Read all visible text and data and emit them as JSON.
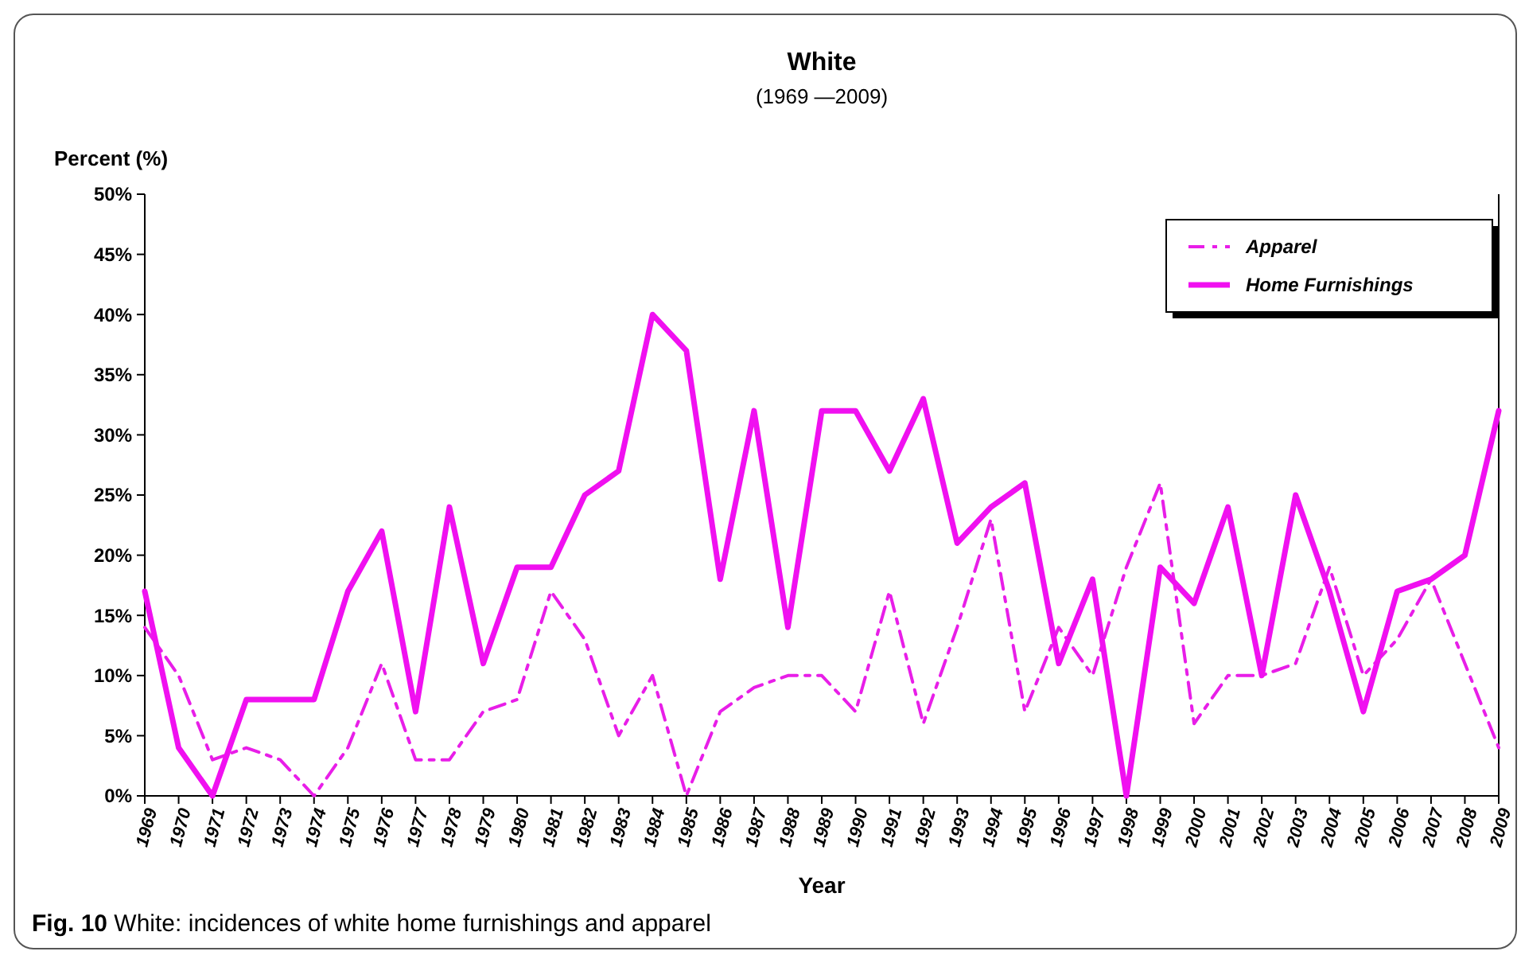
{
  "chart_data": {
    "type": "line",
    "title": "White",
    "subtitle": "(1969 —2009)",
    "xlabel": "Year",
    "ylabel": "Percent (%)",
    "categories": [
      "1969",
      "1970",
      "1971",
      "1972",
      "1973",
      "1974",
      "1975",
      "1976",
      "1977",
      "1978",
      "1979",
      "1980",
      "1981",
      "1982",
      "1983",
      "1984",
      "1985",
      "1986",
      "1987",
      "1988",
      "1989",
      "1990",
      "1991",
      "1992",
      "1993",
      "1994",
      "1995",
      "1996",
      "1997",
      "1998",
      "1999",
      "2000",
      "2001",
      "2002",
      "2003",
      "2004",
      "2005",
      "2006",
      "2007",
      "2008",
      "2009"
    ],
    "series": [
      {
        "name": "Apparel",
        "color": "#e81ee8",
        "line_style": "dashed",
        "values": [
          14,
          10,
          3,
          4,
          3,
          0,
          4,
          11,
          3,
          3,
          7,
          8,
          17,
          13,
          5,
          10,
          0,
          7,
          9,
          10,
          10,
          7,
          17,
          6,
          14,
          23,
          7,
          14,
          10,
          19,
          26,
          6,
          10,
          10,
          11,
          19,
          10,
          13,
          18,
          11,
          4
        ]
      },
      {
        "name": "Home Furnishings",
        "color": "#f010f0",
        "line_style": "solid",
        "values": [
          17,
          4,
          0,
          8,
          8,
          8,
          17,
          22,
          7,
          24,
          11,
          19,
          19,
          25,
          27,
          40,
          37,
          18,
          32,
          14,
          32,
          32,
          27,
          33,
          21,
          24,
          26,
          11,
          18,
          0,
          19,
          16,
          24,
          10,
          25,
          17,
          7,
          17,
          18,
          20,
          32
        ]
      }
    ],
    "ylim": [
      0,
      50
    ],
    "yticks": [
      {
        "value": 0,
        "label": "0%"
      },
      {
        "value": 5,
        "label": "5%"
      },
      {
        "value": 10,
        "label": "10%"
      },
      {
        "value": 15,
        "label": "15%"
      },
      {
        "value": 20,
        "label": "20%"
      },
      {
        "value": 25,
        "label": "25%"
      },
      {
        "value": 30,
        "label": "30%"
      },
      {
        "value": 35,
        "label": "35%"
      },
      {
        "value": 40,
        "label": "40%"
      },
      {
        "value": 45,
        "label": "45%"
      },
      {
        "value": 50,
        "label": "50%"
      }
    ],
    "grid": false,
    "legend": "top right",
    "marker": "none",
    "annotations": [
      "Fig. 10  White: incidences of white home furnishings and apparel"
    ]
  }
}
